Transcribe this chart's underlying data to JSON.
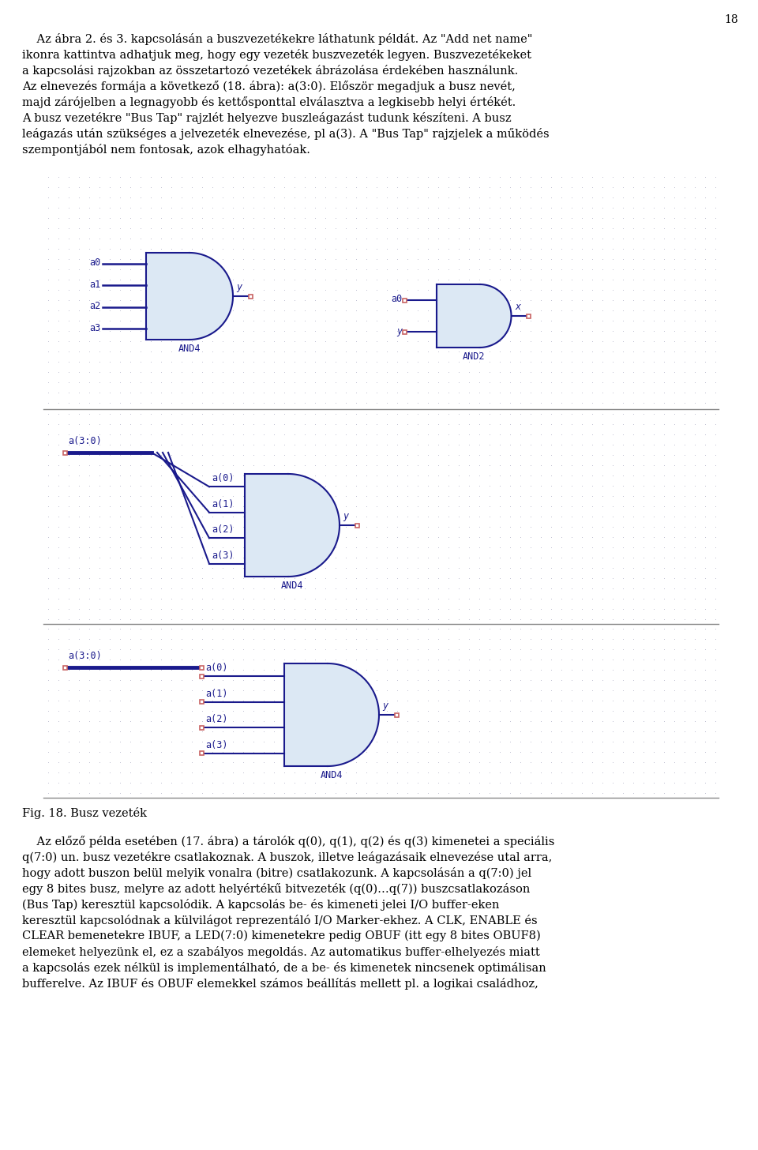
{
  "page_number": "18",
  "bg_color": "#ffffff",
  "dot_color": "#b8b8cc",
  "wire_color": "#1a1a8c",
  "label_color": "#1a1a8c",
  "pin_color": "#c86464",
  "gate_bg": "#dce8f4",
  "separator_color": "#888888",
  "text_color": "#000000",
  "font_size_body": 10.5,
  "font_size_label": 8.5,
  "font_size_fig": 10.5,
  "para1_lines": [
    "    Az ábra 2. és 3. kapcsolásán a buszvezetékekre láthatunk példát. Az \"Add net name\"",
    "ikonra kattintva adhatjuk meg, hogy egy vezeték buszvezeték legyen. Buszvezetékeket",
    "a kapcsolási rajzokban az összetartozó vezetékek ábrázolása érdekében használunk.",
    "Az elnevezés formája a következő (18. ábra): a(3:0). Először megadjuk a busz nevét,",
    "majd zárójelben a legnagyobb és kettősponttal elválasztva a legkisebb helyi értékét.",
    "A busz vezetékre \"Bus Tap\" rajzlét helyezve buszleágazást tudunk készíteni. A busz",
    "leágazás után szükséges a jelvezeték elnevezése, pl a(3). A \"Bus Tap\" rajzjelek a működés",
    "szempontjából nem fontosak, azok elhagyhatóak."
  ],
  "para2_lines": [
    "    Az előző példa esetében (17. ábra) a tárolók q(0), q(1), q(2) és q(3) kimenetei a speciális",
    "q(7:0) un. busz vezetékre csatlakoznak. A buszok, illetve leágazásaik elnevezése utal arra,",
    "hogy adott buszon belül melyik vonalra (bitre) csatlakozunk. A kapcsolásán a q(7:0) jel",
    "egy 8 bites busz, melyre az adott helyértékű bitvezeték (q(0)…q(7)) buszcsatlakozáson",
    "(Bus Tap) keresztül kapcsolódik. A kapcsolás be- és kimeneti jelei I/O buffer-eken",
    "keresztül kapcsolódnak a külvilágot reprezentáló I/O Marker-ekhez. A CLK, ENABLE és",
    "CLEAR bemenetekre IBUF, a LED(7:0) kimenetekre pedig OBUF (itt egy 8 bites OBUF8)",
    "elemeket helyezünk el, ez a szabályos megoldás. Az automatikus buffer-elhelyezés miatt",
    "a kapcsolás ezek nélkül is implementálható, de a be- és kimenetek nincsenek optimálisan",
    "bufferelve. Az IBUF és OBUF elemekkel számos beállítás mellett pl. a logikai családhoz,"
  ],
  "fig_caption": "Fig. 18. Busz vezeték"
}
